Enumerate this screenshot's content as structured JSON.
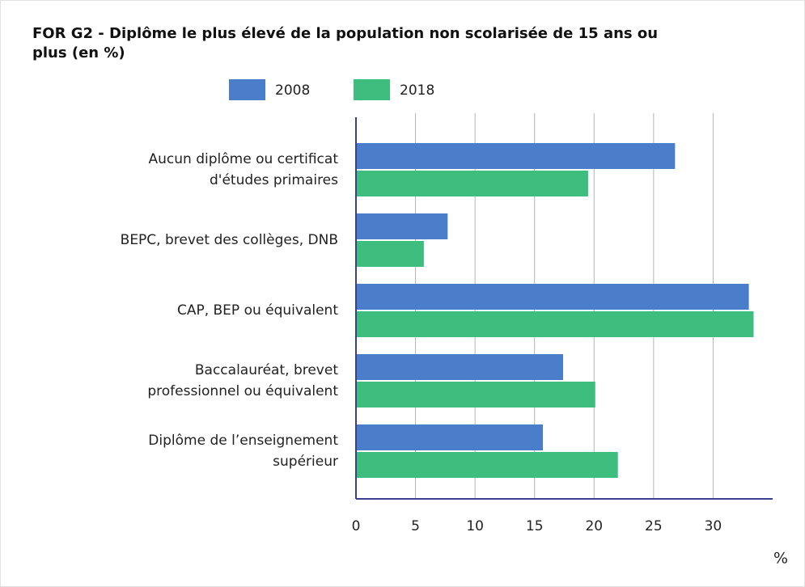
{
  "chart_data": {
    "type": "bar",
    "orientation": "horizontal",
    "title": [
      "FOR G2 - Diplôme le plus élevé de la population non scolarisée de 15 ans ou",
      "plus (en %)"
    ],
    "x_label": "%",
    "categories": [
      [
        "Aucun diplôme ou certificat",
        "d'études primaires"
      ],
      [
        "BEPC, brevet des collèges, DNB"
      ],
      [
        "CAP, BEP ou équivalent"
      ],
      [
        "Baccalauréat, brevet",
        "professionnel ou équivalent"
      ],
      [
        "Diplôme de l’enseignement",
        "supérieur"
      ]
    ],
    "series": [
      {
        "name": "2008",
        "color": "#4a7dca",
        "values": [
          26.8,
          7.7,
          33.0,
          17.4,
          15.7
        ]
      },
      {
        "name": "2018",
        "color": "#3dbe7e",
        "values": [
          19.5,
          5.7,
          33.4,
          20.1,
          22.0
        ]
      }
    ],
    "xlim": [
      0,
      35
    ],
    "xticks": [
      0,
      5,
      10,
      15,
      20,
      25,
      30
    ],
    "grid": true,
    "legend": "top"
  }
}
